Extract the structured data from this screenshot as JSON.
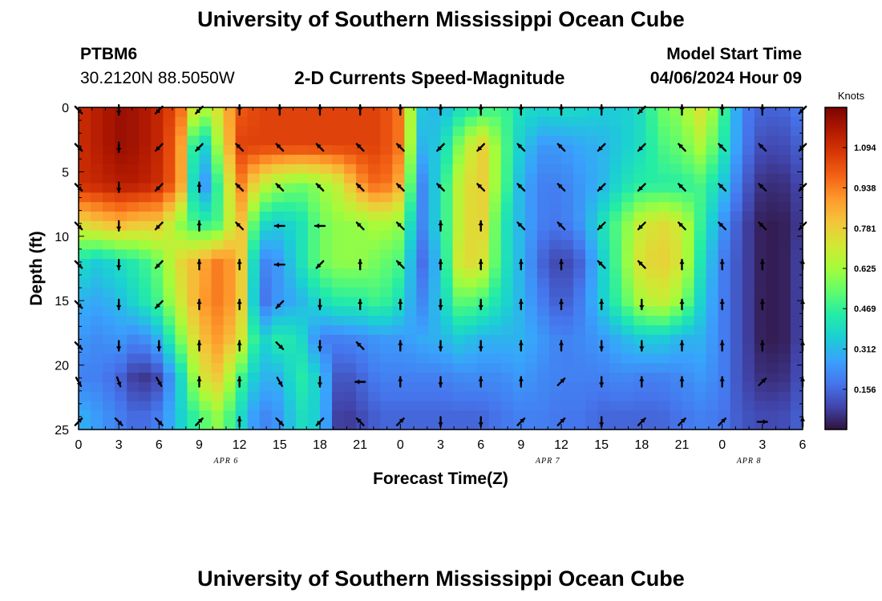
{
  "header": {
    "title": "University of Southern Mississippi Ocean Cube",
    "station": "PTBM6",
    "coords": "30.2120N  88.5050W",
    "subtitle": "2-D Currents Speed-Magnitude",
    "model_start_label": "Model Start Time",
    "model_start_value": "04/06/2024 Hour 09"
  },
  "footer": {
    "title": "University of Southern Mississippi Ocean Cube"
  },
  "chart_data": {
    "type": "heatmap",
    "title": "2-D Currents Speed-Magnitude",
    "xlabel": "Forecast Time(Z)",
    "ylabel": "Depth (ft)",
    "colorbar_label": "Knots",
    "x_tick_labels": [
      "0",
      "3",
      "6",
      "9",
      "12",
      "15",
      "18",
      "21",
      "0",
      "3",
      "6",
      "9",
      "12",
      "15",
      "18",
      "21",
      "0",
      "3",
      "6"
    ],
    "x_range_hours": [
      0,
      54
    ],
    "date_labels": [
      {
        "label": "APR 6",
        "hour": 11
      },
      {
        "label": "APR 7",
        "hour": 35
      },
      {
        "label": "APR 8",
        "hour": 50
      }
    ],
    "y_ticks": [
      0,
      5,
      10,
      15,
      20,
      25
    ],
    "ylim": [
      25,
      0
    ],
    "colorbar_ticks": [
      1.094,
      0.938,
      0.781,
      0.625,
      0.469,
      0.312,
      0.156
    ],
    "colorbar_range": [
      0,
      1.25
    ],
    "colorscale": [
      "#30123b",
      "#4145ab",
      "#4675ed",
      "#39a2fc",
      "#1bcfd4",
      "#24eca6",
      "#61fc6c",
      "#a4fc3b",
      "#d1e834",
      "#f3c63a",
      "#fe9b2d",
      "#f36315",
      "#d93806",
      "#b11901",
      "#7a0403"
    ],
    "grid_hours": [
      0,
      1.5,
      3,
      4.5,
      6,
      7.5,
      9,
      10.5,
      12,
      13.5,
      15,
      16.5,
      18,
      19.5,
      21,
      22.5,
      24,
      25.5,
      27,
      28.5,
      30,
      31.5,
      33,
      34.5,
      36,
      37.5,
      39,
      40.5,
      42,
      43.5,
      45,
      46.5,
      48,
      49.5,
      51,
      52.5,
      54
    ],
    "grid_depths_ft": [
      0,
      3,
      6,
      9,
      12,
      15,
      18,
      21,
      24
    ],
    "speed_knots": [
      [
        1.1,
        1.15,
        1.2,
        1.18,
        1.12,
        1.0,
        0.62,
        0.75,
        1.0,
        1.05,
        1.05,
        1.05,
        1.05,
        1.05,
        1.05,
        1.05,
        0.95,
        0.35,
        0.3,
        0.4,
        0.45,
        0.5,
        0.4,
        0.38,
        0.4,
        0.38,
        0.36,
        0.35,
        0.4,
        0.55,
        0.6,
        0.75,
        0.5,
        0.2,
        0.15,
        0.15,
        0.2
      ],
      [
        1.1,
        1.15,
        1.2,
        1.18,
        1.12,
        0.95,
        0.25,
        0.65,
        1.05,
        1.05,
        1.05,
        1.05,
        1.05,
        1.05,
        1.05,
        1.05,
        0.95,
        0.3,
        0.35,
        0.6,
        0.8,
        0.55,
        0.35,
        0.25,
        0.25,
        0.28,
        0.3,
        0.35,
        0.4,
        0.5,
        0.55,
        0.65,
        0.45,
        0.2,
        0.1,
        0.1,
        0.15
      ],
      [
        1.1,
        1.12,
        1.15,
        1.15,
        1.1,
        0.95,
        0.15,
        0.5,
        0.95,
        0.7,
        0.6,
        0.55,
        0.6,
        0.7,
        0.9,
        1.0,
        0.85,
        0.2,
        0.4,
        0.7,
        0.8,
        0.55,
        0.3,
        0.2,
        0.2,
        0.25,
        0.3,
        0.4,
        0.45,
        0.45,
        0.45,
        0.5,
        0.35,
        0.15,
        0.05,
        0.05,
        0.1
      ],
      [
        0.75,
        0.8,
        0.85,
        0.8,
        0.8,
        0.6,
        0.45,
        0.5,
        0.85,
        0.4,
        0.35,
        0.4,
        0.55,
        0.6,
        0.6,
        0.65,
        0.6,
        0.2,
        0.4,
        0.7,
        0.8,
        0.45,
        0.3,
        0.2,
        0.18,
        0.25,
        0.4,
        0.55,
        0.7,
        0.75,
        0.7,
        0.45,
        0.25,
        0.1,
        0.02,
        0.02,
        0.08
      ],
      [
        0.4,
        0.35,
        0.4,
        0.45,
        0.55,
        0.75,
        0.85,
        0.95,
        0.85,
        0.2,
        0.25,
        0.4,
        0.55,
        0.6,
        0.6,
        0.55,
        0.5,
        0.15,
        0.35,
        0.75,
        0.75,
        0.45,
        0.3,
        0.15,
        0.08,
        0.15,
        0.35,
        0.55,
        0.75,
        0.78,
        0.72,
        0.4,
        0.2,
        0.1,
        0.02,
        0.02,
        0.1
      ],
      [
        0.3,
        0.28,
        0.32,
        0.4,
        0.5,
        0.7,
        0.88,
        0.95,
        0.85,
        0.15,
        0.25,
        0.3,
        0.4,
        0.45,
        0.45,
        0.5,
        0.4,
        0.2,
        0.35,
        0.55,
        0.5,
        0.4,
        0.3,
        0.2,
        0.12,
        0.2,
        0.35,
        0.5,
        0.65,
        0.7,
        0.6,
        0.35,
        0.2,
        0.1,
        0.02,
        0.02,
        0.1
      ],
      [
        0.25,
        0.22,
        0.25,
        0.2,
        0.3,
        0.55,
        0.8,
        0.9,
        0.75,
        0.35,
        0.45,
        0.4,
        0.2,
        0.2,
        0.22,
        0.25,
        0.25,
        0.28,
        0.3,
        0.35,
        0.3,
        0.3,
        0.3,
        0.25,
        0.2,
        0.22,
        0.25,
        0.3,
        0.35,
        0.35,
        0.3,
        0.3,
        0.2,
        0.1,
        0.02,
        0.02,
        0.1
      ],
      [
        0.2,
        0.2,
        0.15,
        0.05,
        0.1,
        0.35,
        0.7,
        0.8,
        0.5,
        0.3,
        0.3,
        0.45,
        0.35,
        0.1,
        0.15,
        0.2,
        0.2,
        0.2,
        0.2,
        0.22,
        0.22,
        0.22,
        0.25,
        0.22,
        0.2,
        0.2,
        0.2,
        0.22,
        0.2,
        0.2,
        0.22,
        0.25,
        0.2,
        0.1,
        0.05,
        0.05,
        0.12
      ],
      [
        0.3,
        0.25,
        0.2,
        0.15,
        0.2,
        0.35,
        0.5,
        0.6,
        0.4,
        0.2,
        0.25,
        0.4,
        0.35,
        0.05,
        0.1,
        0.15,
        0.15,
        0.15,
        0.15,
        0.15,
        0.15,
        0.18,
        0.2,
        0.2,
        0.18,
        0.18,
        0.15,
        0.15,
        0.15,
        0.15,
        0.18,
        0.2,
        0.18,
        0.12,
        0.1,
        0.1,
        0.15
      ]
    ],
    "arrow_rows_ft": [
      0.2,
      3.1,
      6.2,
      9.2,
      12.2,
      15.3,
      18.5,
      21.3,
      24.4
    ],
    "arrow_hours": [
      0,
      3,
      6,
      9,
      12,
      15,
      18,
      21,
      24,
      27,
      30,
      33,
      36,
      39,
      42,
      45,
      48,
      51,
      54
    ],
    "arrow_direction_deg": [
      [
        135,
        180,
        225,
        225,
        0,
        0,
        0,
        0,
        0,
        0,
        0,
        0,
        0,
        0,
        225,
        0,
        0,
        0,
        225
      ],
      [
        135,
        180,
        225,
        225,
        315,
        315,
        315,
        315,
        315,
        225,
        225,
        315,
        315,
        225,
        225,
        315,
        315,
        315,
        225
      ],
      [
        135,
        180,
        225,
        0,
        315,
        315,
        315,
        315,
        315,
        315,
        315,
        315,
        315,
        225,
        225,
        315,
        315,
        315,
        225
      ],
      [
        135,
        180,
        225,
        0,
        315,
        270,
        270,
        315,
        315,
        0,
        0,
        315,
        315,
        225,
        225,
        315,
        315,
        315,
        225
      ],
      [
        135,
        180,
        225,
        0,
        0,
        270,
        225,
        0,
        315,
        0,
        0,
        0,
        0,
        315,
        315,
        0,
        0,
        0,
        0
      ],
      [
        135,
        180,
        225,
        0,
        0,
        225,
        180,
        0,
        0,
        180,
        180,
        0,
        0,
        0,
        180,
        0,
        0,
        0,
        0
      ],
      [
        135,
        180,
        180,
        0,
        0,
        135,
        180,
        315,
        0,
        180,
        180,
        0,
        0,
        180,
        180,
        0,
        0,
        0,
        0
      ],
      [
        150,
        160,
        150,
        0,
        0,
        150,
        180,
        270,
        0,
        180,
        0,
        0,
        45,
        180,
        0,
        0,
        0,
        45,
        0
      ],
      [
        45,
        135,
        135,
        45,
        0,
        135,
        225,
        315,
        45,
        180,
        180,
        45,
        45,
        180,
        45,
        45,
        45,
        90,
        0
      ]
    ]
  }
}
